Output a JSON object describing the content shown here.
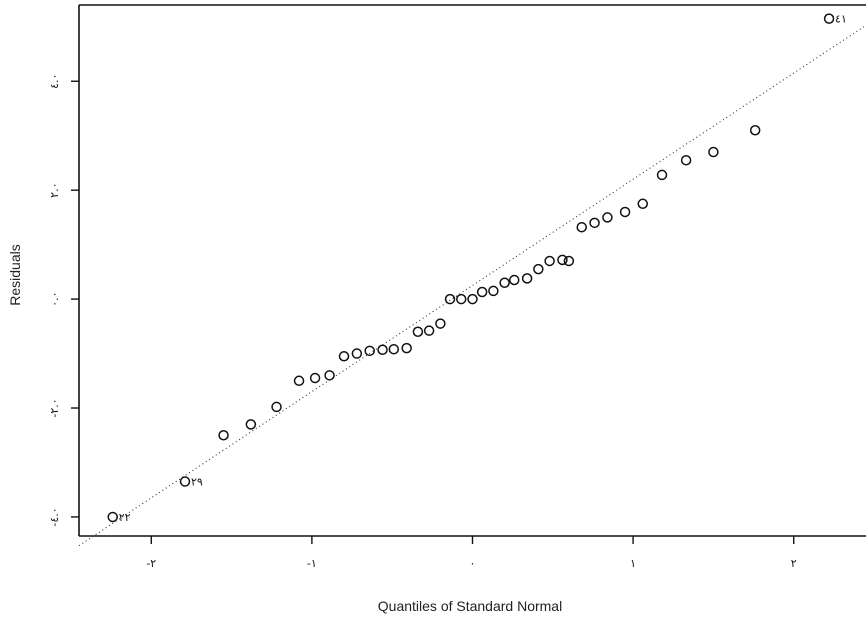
{
  "chart_data": {
    "type": "scatter",
    "title": "",
    "xlabel": "Quantiles of Standard Normal",
    "ylabel": "Residuals",
    "xlim": [
      -2.45,
      2.45
    ],
    "ylim": [
      -4.35,
      5.4
    ],
    "x_ticks": [
      {
        "value": -2,
        "label": "-٢"
      },
      {
        "value": -1,
        "label": "-١"
      },
      {
        "value": 0,
        "label": "٠"
      },
      {
        "value": 1,
        "label": "١"
      },
      {
        "value": 2,
        "label": "٢"
      }
    ],
    "y_ticks": [
      {
        "value": -4,
        "label": "-٤.٠"
      },
      {
        "value": -2,
        "label": "-٢.٠"
      },
      {
        "value": 0,
        "label": "٠.٠"
      },
      {
        "value": 2,
        "label": "٢.٠"
      },
      {
        "value": 4,
        "label": "٤.٠"
      }
    ],
    "grid": false,
    "reference_line": {
      "slope": 1.95,
      "intercept": 0.25
    },
    "points": [
      {
        "x": -2.24,
        "y": -4.0,
        "label": "٢٢"
      },
      {
        "x": -1.79,
        "y": -3.35,
        "label": "٢٩"
      },
      {
        "x": -1.55,
        "y": -2.5
      },
      {
        "x": -1.38,
        "y": -2.3
      },
      {
        "x": -1.22,
        "y": -1.98
      },
      {
        "x": -1.08,
        "y": -1.5
      },
      {
        "x": -0.98,
        "y": -1.45
      },
      {
        "x": -0.89,
        "y": -1.4
      },
      {
        "x": -0.8,
        "y": -1.05
      },
      {
        "x": -0.72,
        "y": -1.0
      },
      {
        "x": -0.64,
        "y": -0.95
      },
      {
        "x": -0.56,
        "y": -0.93
      },
      {
        "x": -0.49,
        "y": -0.92
      },
      {
        "x": -0.41,
        "y": -0.9
      },
      {
        "x": -0.34,
        "y": -0.6
      },
      {
        "x": -0.27,
        "y": -0.58
      },
      {
        "x": -0.2,
        "y": -0.45
      },
      {
        "x": -0.14,
        "y": 0.0
      },
      {
        "x": -0.07,
        "y": 0.0
      },
      {
        "x": 0.0,
        "y": 0.0
      },
      {
        "x": 0.06,
        "y": 0.13
      },
      {
        "x": 0.13,
        "y": 0.15
      },
      {
        "x": 0.2,
        "y": 0.3
      },
      {
        "x": 0.26,
        "y": 0.35
      },
      {
        "x": 0.34,
        "y": 0.38
      },
      {
        "x": 0.41,
        "y": 0.55
      },
      {
        "x": 0.48,
        "y": 0.7
      },
      {
        "x": 0.56,
        "y": 0.72
      },
      {
        "x": 0.6,
        "y": 0.7
      },
      {
        "x": 0.68,
        "y": 1.32
      },
      {
        "x": 0.76,
        "y": 1.4
      },
      {
        "x": 0.84,
        "y": 1.5
      },
      {
        "x": 0.95,
        "y": 1.6
      },
      {
        "x": 1.06,
        "y": 1.75
      },
      {
        "x": 1.18,
        "y": 2.28
      },
      {
        "x": 1.33,
        "y": 2.55
      },
      {
        "x": 1.5,
        "y": 2.7
      },
      {
        "x": 1.76,
        "y": 3.1
      },
      {
        "x": 2.22,
        "y": 5.15,
        "label": "٤١"
      }
    ]
  }
}
